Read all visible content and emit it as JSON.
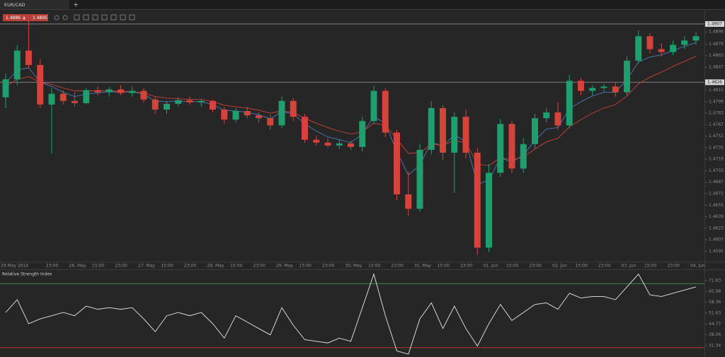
{
  "tab": {
    "symbol": "EUR/CAD"
  },
  "quote": {
    "bid": 1.4886,
    "ask": 1.4895
  },
  "chart_data": [
    {
      "type": "candlestick",
      "open": [
        1.4805,
        1.483,
        1.487,
        1.485,
        1.4795,
        1.481,
        1.48,
        1.4797,
        1.4815,
        1.4812,
        1.4816,
        1.4811,
        1.4814,
        1.4802,
        1.4788,
        1.4796,
        1.4801,
        1.4798,
        1.48,
        1.4788,
        1.4774,
        1.4786,
        1.478,
        1.4776,
        1.4766,
        1.48,
        1.4778,
        1.4746,
        1.4742,
        1.4738,
        1.4741,
        1.4736,
        1.4772,
        1.4814,
        1.4756,
        1.467,
        1.465,
        1.4732,
        1.479,
        1.4728,
        1.4778,
        1.4728,
        1.4596,
        1.47,
        1.4768,
        1.4706,
        1.474,
        1.4776,
        1.4784,
        1.4766,
        1.4828,
        1.4814,
        1.4818,
        1.482,
        1.4812,
        1.4856,
        1.489,
        1.4872,
        1.4868,
        1.4878,
        1.4884
      ],
      "high": [
        1.4838,
        1.4878,
        1.4912,
        1.4858,
        1.4818,
        1.4815,
        1.4812,
        1.4818,
        1.482,
        1.4819,
        1.4822,
        1.482,
        1.4818,
        1.4806,
        1.48,
        1.4805,
        1.4806,
        1.4803,
        1.4802,
        1.4792,
        1.479,
        1.4792,
        1.4784,
        1.4781,
        1.4806,
        1.4804,
        1.4782,
        1.4752,
        1.4748,
        1.4746,
        1.4745,
        1.4778,
        1.4821,
        1.4818,
        1.476,
        1.4702,
        1.474,
        1.48,
        1.4794,
        1.4784,
        1.4788,
        1.4735,
        1.4712,
        1.4775,
        1.4772,
        1.4748,
        1.4782,
        1.479,
        1.4798,
        1.4836,
        1.4832,
        1.4822,
        1.4824,
        1.4826,
        1.4862,
        1.4898,
        1.4894,
        1.488,
        1.4884,
        1.489,
        1.4896
      ],
      "low": [
        1.479,
        1.4822,
        1.4845,
        1.479,
        1.4727,
        1.4795,
        1.4792,
        1.4795,
        1.4808,
        1.4806,
        1.4808,
        1.4806,
        1.4798,
        1.4782,
        1.4782,
        1.4792,
        1.4795,
        1.4792,
        1.4784,
        1.4768,
        1.477,
        1.4776,
        1.477,
        1.476,
        1.4762,
        1.4772,
        1.4742,
        1.4738,
        1.4735,
        1.4733,
        1.4732,
        1.473,
        1.4768,
        1.475,
        1.4662,
        1.464,
        1.4646,
        1.4726,
        1.4718,
        1.4672,
        1.472,
        1.4586,
        1.459,
        1.4694,
        1.47,
        1.47,
        1.4734,
        1.477,
        1.476,
        1.4762,
        1.4808,
        1.4808,
        1.4812,
        1.4806,
        1.4808,
        1.4852,
        1.4866,
        1.4862,
        1.4864,
        1.4872,
        1.4878
      ],
      "close": [
        1.483,
        1.487,
        1.485,
        1.4795,
        1.481,
        1.48,
        1.4797,
        1.4815,
        1.4812,
        1.4816,
        1.4811,
        1.4814,
        1.4802,
        1.4788,
        1.4796,
        1.4801,
        1.4798,
        1.48,
        1.4788,
        1.4774,
        1.4786,
        1.478,
        1.4776,
        1.4766,
        1.48,
        1.4778,
        1.4746,
        1.4742,
        1.4738,
        1.4741,
        1.4736,
        1.4772,
        1.4814,
        1.4756,
        1.467,
        1.465,
        1.4732,
        1.479,
        1.4728,
        1.4778,
        1.4728,
        1.4596,
        1.47,
        1.4768,
        1.4706,
        1.474,
        1.4776,
        1.4784,
        1.4766,
        1.4828,
        1.4814,
        1.4818,
        1.482,
        1.4812,
        1.4856,
        1.489,
        1.4872,
        1.4868,
        1.4878,
        1.4884,
        1.489
      ],
      "up_color": "#1f9f6e",
      "down_color": "#d6433b",
      "series": [
        {
          "color": "#4c79b8",
          "values": [
            1.4825,
            1.4843,
            1.4846,
            1.4826,
            1.482,
            1.4812,
            1.4806,
            1.481,
            1.4811,
            1.4813,
            1.4812,
            1.4813,
            1.4809,
            1.48,
            1.4799,
            1.48,
            1.4799,
            1.4799,
            1.4795,
            1.4787,
            1.4786,
            1.4784,
            1.4781,
            1.4775,
            1.4785,
            1.4782,
            1.4768,
            1.4758,
            1.475,
            1.4746,
            1.4742,
            1.4754,
            1.4778,
            1.4769,
            1.4729,
            1.4697,
            1.4711,
            1.4743,
            1.4737,
            1.4753,
            1.4743,
            1.4684,
            1.469,
            1.4721,
            1.4715,
            1.4725,
            1.4745,
            1.4761,
            1.4763,
            1.4789,
            1.4799,
            1.4807,
            1.4812,
            1.4812,
            1.483,
            1.4854,
            1.4861,
            1.4864,
            1.487,
            1.4876,
            1.4881
          ]
        },
        {
          "color": "#c9413a",
          "values": [
            1.482,
            1.483,
            1.4834,
            1.4826,
            1.4823,
            1.4818,
            1.4814,
            1.4814,
            1.4814,
            1.4814,
            1.4813,
            1.4813,
            1.4811,
            1.4806,
            1.4804,
            1.4803,
            1.4802,
            1.4802,
            1.4799,
            1.4794,
            1.4792,
            1.479,
            1.4787,
            1.4783,
            1.4786,
            1.4784,
            1.4776,
            1.4769,
            1.4763,
            1.4758,
            1.4754,
            1.4757,
            1.4769,
            1.4766,
            1.4747,
            1.4727,
            1.4728,
            1.474,
            1.4738,
            1.4745,
            1.4742,
            1.4712,
            1.471,
            1.4721,
            1.4718,
            1.4722,
            1.4733,
            1.4743,
            1.4748,
            1.4764,
            1.4774,
            1.4783,
            1.479,
            1.4795,
            1.4807,
            1.4824,
            1.4833,
            1.484,
            1.4848,
            1.4855,
            1.4862
          ]
        }
      ],
      "ylim": [
        1.45766,
        1.49266
      ],
      "yticks": [
        1.4896,
        1.4879,
        1.4863,
        1.4847,
        1.4815,
        1.4799,
        1.4783,
        1.4767,
        1.4751,
        1.4735,
        1.4719,
        1.4703,
        1.4687,
        1.4671,
        1.4655,
        1.4639,
        1.4623,
        1.4607,
        1.4591
      ],
      "hlines": [
        1.4907,
        1.4826
      ],
      "xticks": [
        {
          "value": 0,
          "label": "29 May 2014"
        },
        {
          "value": 4,
          "label": "23:00"
        },
        {
          "value": 6,
          "label": "26. May"
        },
        {
          "value": 8,
          "label": "15:00"
        },
        {
          "value": 10,
          "label": "23:00"
        },
        {
          "value": 12,
          "label": "27. May"
        },
        {
          "value": 14,
          "label": "15:00"
        },
        {
          "value": 16,
          "label": "23:00"
        },
        {
          "value": 18,
          "label": "28. May"
        },
        {
          "value": 20,
          "label": "15:00"
        },
        {
          "value": 22,
          "label": "23:00"
        },
        {
          "value": 24,
          "label": "29. May"
        },
        {
          "value": 26,
          "label": "15:00"
        },
        {
          "value": 28,
          "label": "23:00"
        },
        {
          "value": 30,
          "label": "30. May"
        },
        {
          "value": 32,
          "label": "15:00"
        },
        {
          "value": 34,
          "label": "23:00"
        },
        {
          "value": 36,
          "label": "31. May"
        },
        {
          "value": 38,
          "label": "15:00"
        },
        {
          "value": 40,
          "label": "23:00"
        },
        {
          "value": 42,
          "label": "01. Jun"
        },
        {
          "value": 44,
          "label": "15:00"
        },
        {
          "value": 46,
          "label": "23:00"
        },
        {
          "value": 48,
          "label": "02. Jun"
        },
        {
          "value": 50,
          "label": "15:00"
        },
        {
          "value": 52,
          "label": "23:00"
        },
        {
          "value": 54,
          "label": "03. Jun"
        },
        {
          "value": 56,
          "label": "15:00"
        },
        {
          "value": 58,
          "label": "23:00"
        },
        {
          "value": 60,
          "label": "04. Jun"
        }
      ]
    },
    {
      "type": "line",
      "title": "Relative Strength Index",
      "color": "#e6e6e6",
      "values": [
        52,
        60,
        45,
        48,
        50,
        52,
        50,
        56,
        54,
        55,
        54,
        55,
        48,
        40,
        50,
        52,
        50,
        52,
        45,
        36,
        50,
        46,
        42,
        38,
        55,
        44,
        35,
        34,
        33,
        36,
        34,
        55,
        76,
        50,
        28,
        26,
        48,
        58,
        42,
        56,
        42,
        31,
        45,
        57,
        47,
        52,
        57,
        58,
        54,
        64,
        61,
        62,
        62,
        60,
        68,
        76,
        63,
        62,
        64,
        66,
        68
      ],
      "ylim": [
        24.2,
        78.5
      ],
      "yticks": [
        71.83,
        65.08,
        58.36,
        51.63,
        44.77,
        38.06,
        31.34
      ],
      "levels": [
        {
          "value": 70,
          "color": "#3d8a45"
        },
        {
          "value": 30,
          "color": "#c0392b"
        }
      ]
    }
  ]
}
